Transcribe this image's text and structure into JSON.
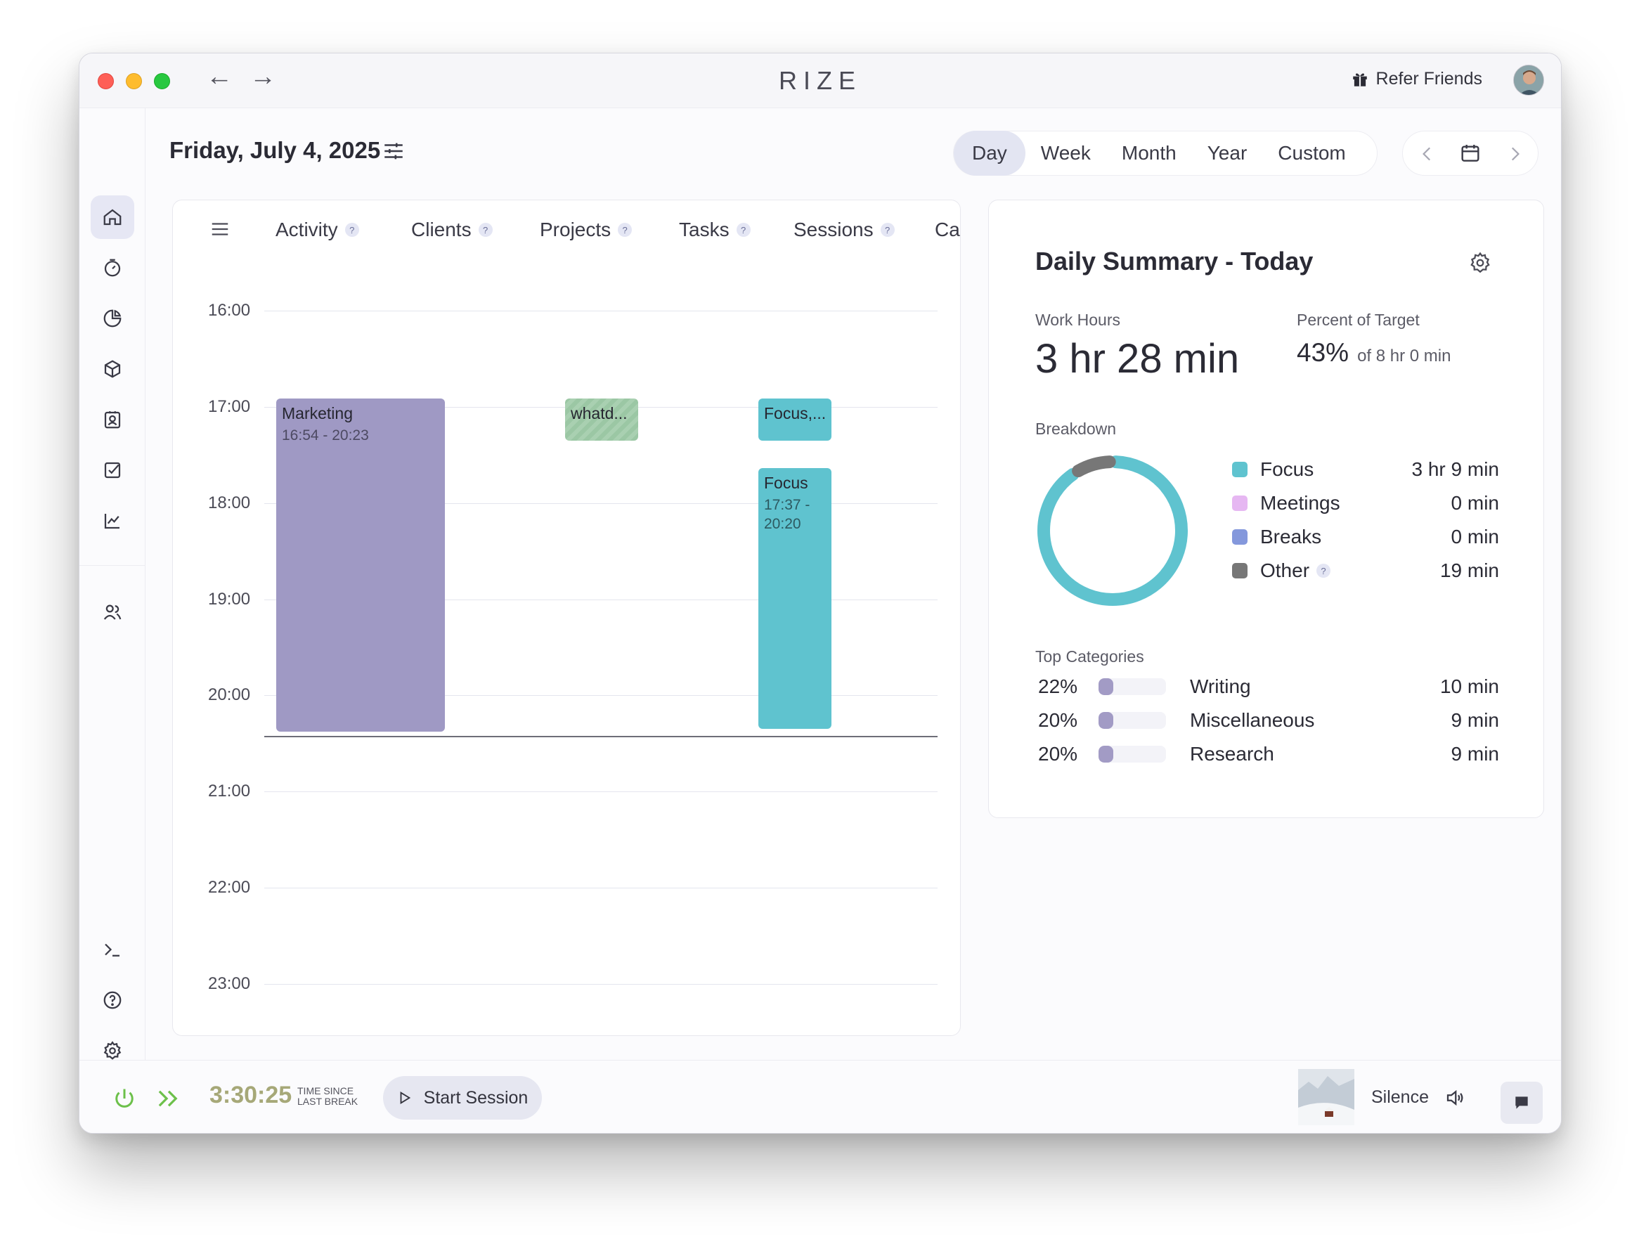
{
  "app": {
    "title": "RIZE",
    "refer_label": "Refer Friends"
  },
  "header": {
    "date": "Friday, July 4, 2025",
    "ranges": [
      "Day",
      "Week",
      "Month",
      "Year",
      "Custom"
    ],
    "active_range": "Day"
  },
  "tabs": [
    {
      "label": "Activity",
      "help": "?"
    },
    {
      "label": "Clients",
      "help": "?"
    },
    {
      "label": "Projects",
      "help": "?"
    },
    {
      "label": "Tasks",
      "help": "?"
    },
    {
      "label": "Sessions",
      "help": "?"
    },
    {
      "label": "Calen",
      "help": ""
    }
  ],
  "timeline": {
    "hours": [
      "16:00",
      "17:00",
      "18:00",
      "19:00",
      "20:00",
      "21:00",
      "22:00",
      "23:00"
    ],
    "events": [
      {
        "title": "Marketing",
        "time": "16:54 - 20:23",
        "color": "#9f99c4"
      },
      {
        "title": "whatd...",
        "time": "",
        "color": "#9bc7a4"
      },
      {
        "title": "Focus,...",
        "time": "",
        "color": "#5fc3cf"
      },
      {
        "title": "Focus",
        "time": "17:37 - 20:20",
        "color": "#5fc3cf"
      }
    ]
  },
  "summary": {
    "title": "Daily Summary - Today",
    "work_hours_label": "Work Hours",
    "work_hours_value": "3 hr 28 min",
    "target_label": "Percent of Target",
    "target_pct": "43%",
    "target_of": "of 8 hr 0 min",
    "breakdown_label": "Breakdown",
    "breakdown": [
      {
        "name": "Focus",
        "value": "3 hr 9 min",
        "color": "#5fc3cf",
        "help": ""
      },
      {
        "name": "Meetings",
        "value": "0 min",
        "color": "#e6b7f2",
        "help": ""
      },
      {
        "name": "Breaks",
        "value": "0 min",
        "color": "#8498dc",
        "help": ""
      },
      {
        "name": "Other",
        "value": "19 min",
        "color": "#777777",
        "help": "?"
      }
    ],
    "donut_fractions": {
      "focus": 0.909,
      "other": 0.091
    },
    "top_categories_label": "Top Categories",
    "top_categories": [
      {
        "pct": "22%",
        "name": "Writing",
        "value": "10 min",
        "fill": 0.22
      },
      {
        "pct": "20%",
        "name": "Miscellaneous",
        "value": "9 min",
        "fill": 0.2
      },
      {
        "pct": "20%",
        "name": "Research",
        "value": "9 min",
        "fill": 0.2
      }
    ]
  },
  "bottom": {
    "timer": "3:30:25",
    "timer_label_1": "TIME SINCE",
    "timer_label_2": "LAST BREAK",
    "start_label": "Start Session",
    "sound_label": "Silence"
  },
  "colors": {
    "accent": "#5fc3cf",
    "marketing": "#9f99c4",
    "timer": "#a6a878",
    "power": "#6cc04a"
  }
}
